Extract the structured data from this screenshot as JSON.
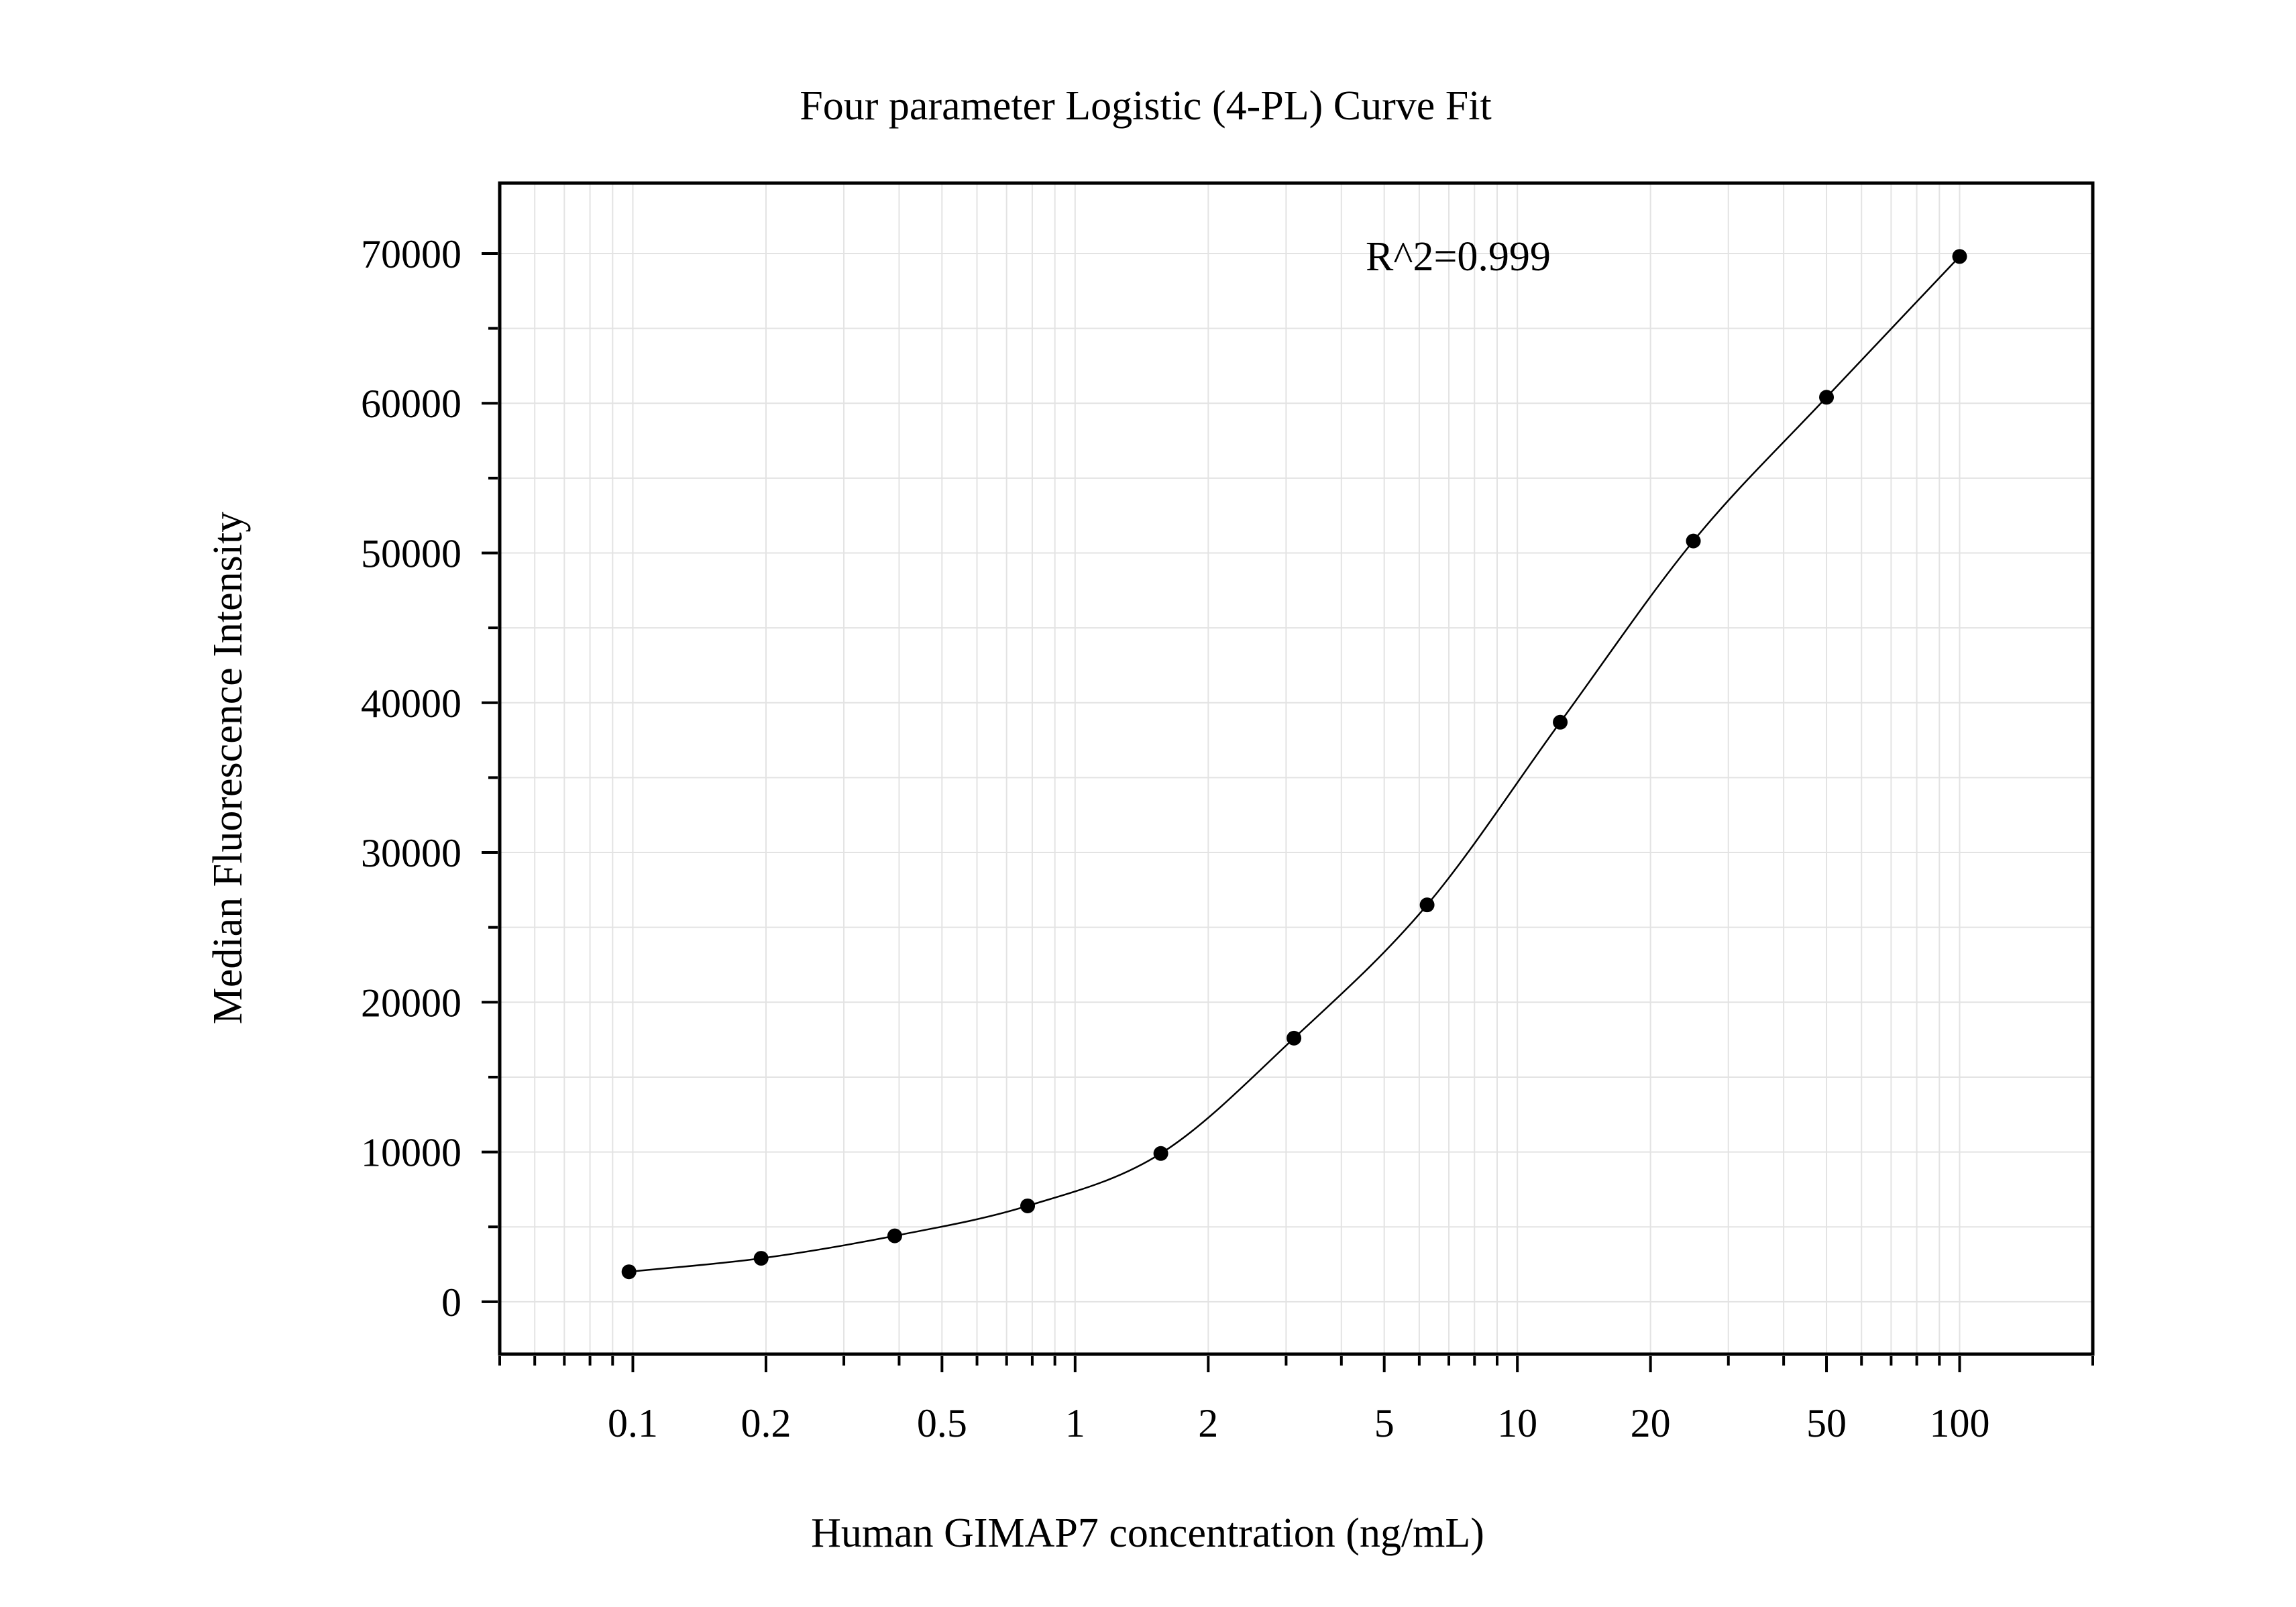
{
  "chart_data": {
    "type": "scatter",
    "title": "Four parameter Logistic (4-PL) Curve Fit",
    "xlabel": "Human GIMAP7 concentration (ng/mL)",
    "ylabel": "Median Fluorescence Intensity",
    "xscale": "log",
    "xlim": [
      0.05,
      200
    ],
    "ylim": [
      -3500,
      74700
    ],
    "grid": true,
    "annotation": "R^2=0.999",
    "x_ticks": [
      {
        "value": 0.1,
        "label": "0.1"
      },
      {
        "value": 0.2,
        "label": "0.2"
      },
      {
        "value": 0.5,
        "label": "0.5"
      },
      {
        "value": 1,
        "label": "1"
      },
      {
        "value": 2,
        "label": "2"
      },
      {
        "value": 5,
        "label": "5"
      },
      {
        "value": 10,
        "label": "10"
      },
      {
        "value": 20,
        "label": "20"
      },
      {
        "value": 50,
        "label": "50"
      },
      {
        "value": 100,
        "label": "100"
      }
    ],
    "y_ticks": [
      {
        "value": 0,
        "label": "0"
      },
      {
        "value": 10000,
        "label": "10000"
      },
      {
        "value": 20000,
        "label": "20000"
      },
      {
        "value": 30000,
        "label": "30000"
      },
      {
        "value": 40000,
        "label": "40000"
      },
      {
        "value": 50000,
        "label": "50000"
      },
      {
        "value": 60000,
        "label": "60000"
      },
      {
        "value": 70000,
        "label": "70000"
      }
    ],
    "points": [
      {
        "x": 0.098,
        "y": 2000
      },
      {
        "x": 0.195,
        "y": 2900
      },
      {
        "x": 0.391,
        "y": 4400
      },
      {
        "x": 0.781,
        "y": 6400
      },
      {
        "x": 1.5625,
        "y": 9900
      },
      {
        "x": 3.125,
        "y": 17600
      },
      {
        "x": 6.25,
        "y": 26500
      },
      {
        "x": 12.5,
        "y": 38700
      },
      {
        "x": 25,
        "y": 50800
      },
      {
        "x": 50,
        "y": 60400
      },
      {
        "x": 100,
        "y": 69800
      }
    ],
    "colors": {
      "points": "#000000",
      "curve": "#000000",
      "grid": "#e3e3e3",
      "axes": "#000000"
    }
  }
}
